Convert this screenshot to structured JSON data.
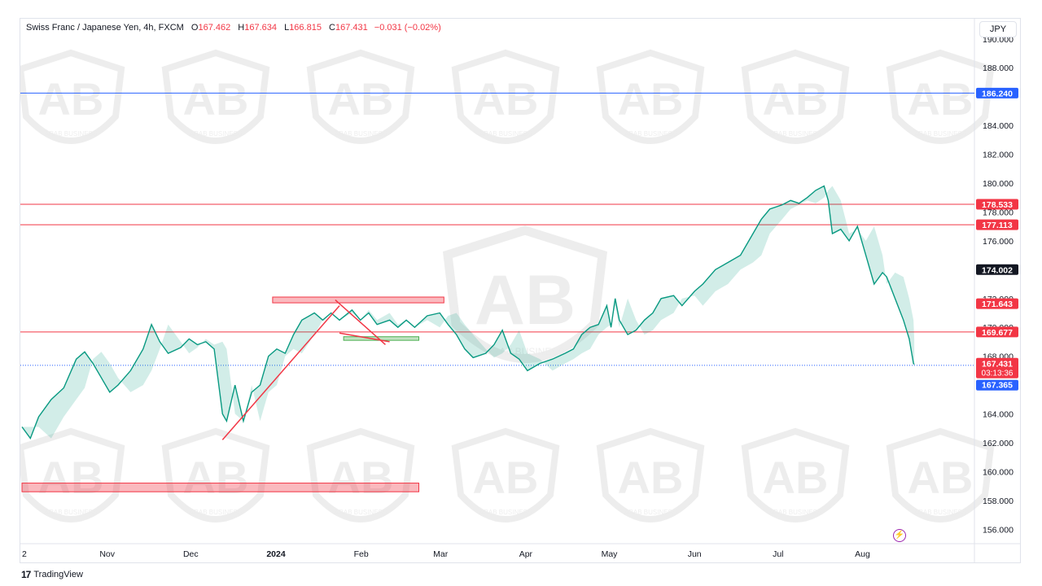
{
  "header": {
    "symbol": "Swiss Franc / Japanese Yen, 4h, FXCM",
    "open_label": "O",
    "open": "167.462",
    "high_label": "H",
    "high": "167.634",
    "low_label": "L",
    "low": "166.815",
    "close_label": "C",
    "close": "167.431",
    "change": "−0.031 (−0.02%)"
  },
  "currency_button": "JPY",
  "footer": {
    "brand": "TradingView",
    "logo_glyph": "17"
  },
  "watermark": {
    "text": "ARAB BUSINESS",
    "letters": "AB"
  },
  "bolt_icon": "⚡",
  "chart_data": {
    "type": "line",
    "ylim": [
      155.0,
      191.4
    ],
    "y_ticks": [
      "156.000",
      "158.000",
      "160.000",
      "162.000",
      "164.000",
      "168.000",
      "170.000",
      "172.000",
      "174.000",
      "176.000",
      "178.000",
      "180.000",
      "182.000",
      "184.000",
      "188.000",
      "190.000"
    ],
    "x_ticks": [
      {
        "label": "2",
        "t": 0
      },
      {
        "label": "Nov",
        "t": 1.02
      },
      {
        "label": "Dec",
        "t": 2.02
      },
      {
        "label": "2024",
        "t": 3.04
      },
      {
        "label": "Feb",
        "t": 4.06
      },
      {
        "label": "Mar",
        "t": 5.01
      },
      {
        "label": "Apr",
        "t": 6.03
      },
      {
        "label": "May",
        "t": 7.03
      },
      {
        "label": "Jun",
        "t": 8.05
      },
      {
        "label": "Jul",
        "t": 9.05
      },
      {
        "label": "Aug",
        "t": 10.06
      }
    ],
    "t_max": 11.4,
    "series": [
      {
        "color": "#089981",
        "points": [
          [
            0.0,
            163.1
          ],
          [
            0.1,
            162.3
          ],
          [
            0.2,
            163.8
          ],
          [
            0.35,
            165.0
          ],
          [
            0.5,
            165.8
          ],
          [
            0.65,
            167.8
          ],
          [
            0.75,
            168.3
          ],
          [
            0.85,
            167.5
          ],
          [
            0.95,
            166.5
          ],
          [
            1.05,
            165.5
          ],
          [
            1.15,
            166.0
          ],
          [
            1.3,
            167.0
          ],
          [
            1.45,
            168.5
          ],
          [
            1.55,
            170.2
          ],
          [
            1.65,
            169.0
          ],
          [
            1.75,
            168.2
          ],
          [
            1.9,
            168.6
          ],
          [
            2.0,
            169.2
          ],
          [
            2.1,
            168.8
          ],
          [
            2.2,
            169.0
          ],
          [
            2.3,
            168.5
          ],
          [
            2.4,
            164.0
          ],
          [
            2.45,
            163.5
          ],
          [
            2.55,
            166.0
          ],
          [
            2.65,
            163.5
          ],
          [
            2.75,
            165.5
          ],
          [
            2.85,
            166.0
          ],
          [
            2.95,
            168.0
          ],
          [
            3.05,
            168.5
          ],
          [
            3.15,
            168.2
          ],
          [
            3.25,
            169.5
          ],
          [
            3.35,
            170.5
          ],
          [
            3.5,
            171.0
          ],
          [
            3.6,
            170.5
          ],
          [
            3.7,
            171.0
          ],
          [
            3.8,
            170.5
          ],
          [
            3.95,
            171.2
          ],
          [
            4.05,
            170.5
          ],
          [
            4.15,
            171.0
          ],
          [
            4.25,
            170.2
          ],
          [
            4.4,
            170.5
          ],
          [
            4.5,
            170.0
          ],
          [
            4.6,
            170.5
          ],
          [
            4.7,
            170.0
          ],
          [
            4.85,
            170.8
          ],
          [
            5.0,
            171.0
          ],
          [
            5.1,
            170.2
          ],
          [
            5.2,
            169.5
          ],
          [
            5.3,
            168.5
          ],
          [
            5.4,
            167.9
          ],
          [
            5.55,
            168.2
          ],
          [
            5.65,
            168.8
          ],
          [
            5.75,
            169.8
          ],
          [
            5.85,
            168.2
          ],
          [
            5.95,
            167.8
          ],
          [
            6.05,
            167.0
          ],
          [
            6.2,
            167.5
          ],
          [
            6.35,
            167.8
          ],
          [
            6.5,
            168.2
          ],
          [
            6.6,
            168.5
          ],
          [
            6.7,
            169.5
          ],
          [
            6.8,
            170.0
          ],
          [
            6.9,
            170.2
          ],
          [
            7.0,
            171.5
          ],
          [
            7.05,
            170.0
          ],
          [
            7.1,
            172.0
          ],
          [
            7.15,
            170.5
          ],
          [
            7.25,
            169.5
          ],
          [
            7.35,
            169.8
          ],
          [
            7.45,
            170.5
          ],
          [
            7.55,
            171.0
          ],
          [
            7.65,
            172.0
          ],
          [
            7.8,
            172.2
          ],
          [
            7.9,
            171.5
          ],
          [
            8.05,
            172.5
          ],
          [
            8.15,
            173.0
          ],
          [
            8.3,
            174.0
          ],
          [
            8.45,
            174.5
          ],
          [
            8.6,
            175.0
          ],
          [
            8.75,
            176.5
          ],
          [
            8.85,
            177.5
          ],
          [
            8.95,
            178.2
          ],
          [
            9.1,
            178.5
          ],
          [
            9.2,
            178.8
          ],
          [
            9.3,
            178.6
          ],
          [
            9.4,
            179.0
          ],
          [
            9.5,
            179.5
          ],
          [
            9.6,
            179.8
          ],
          [
            9.65,
            178.8
          ],
          [
            9.7,
            176.5
          ],
          [
            9.8,
            176.8
          ],
          [
            9.9,
            176.0
          ],
          [
            10.0,
            177.0
          ],
          [
            10.1,
            175.0
          ],
          [
            10.2,
            173.0
          ],
          [
            10.3,
            173.8
          ],
          [
            10.35,
            173.5
          ],
          [
            10.45,
            172.0
          ],
          [
            10.55,
            170.5
          ],
          [
            10.62,
            169.2
          ],
          [
            10.67,
            167.5
          ],
          [
            10.68,
            167.43
          ]
        ]
      }
    ],
    "levels": [
      {
        "price": 186.24,
        "color": "#2962ff",
        "label": "186.240"
      },
      {
        "price": 178.533,
        "color": "#f23645",
        "label": "178.533"
      },
      {
        "price": 177.113,
        "color": "#f23645",
        "label": "177.113"
      },
      {
        "price": 169.677,
        "color": "#f23645",
        "label": "169.677"
      },
      {
        "price": 167.365,
        "color": "#2962ff",
        "label": "167.365",
        "dotted": true
      }
    ],
    "price_tags": [
      {
        "price": 174.002,
        "bg": "#131722",
        "label": "174.002"
      },
      {
        "price": 171.643,
        "bg": "#f23645",
        "label": "171.643"
      }
    ],
    "current_price": {
      "price": 167.431,
      "label": "167.431",
      "countdown": "03:13:36",
      "bg": "#f23645"
    },
    "zones": [
      {
        "t0": 3.0,
        "t1": 5.05,
        "p_top": 172.1,
        "p_bot": 171.7,
        "color": "#f23645"
      },
      {
        "t0": 0.0,
        "t1": 4.75,
        "p_top": 159.2,
        "p_bot": 158.6,
        "color": "#f23645"
      },
      {
        "t0": 3.85,
        "t1": 4.75,
        "p_top": 169.35,
        "p_bot": 169.1,
        "color": "#4caf50"
      }
    ],
    "trendlines": [
      {
        "t0": 2.4,
        "p0": 162.2,
        "t1": 3.8,
        "p1": 171.5,
        "color": "#f23645"
      },
      {
        "t0": 3.75,
        "p0": 171.9,
        "t1": 4.35,
        "p1": 168.8,
        "color": "#f23645"
      },
      {
        "t0": 3.8,
        "p0": 169.6,
        "t1": 4.4,
        "p1": 169.0,
        "color": "#f23645"
      }
    ]
  }
}
